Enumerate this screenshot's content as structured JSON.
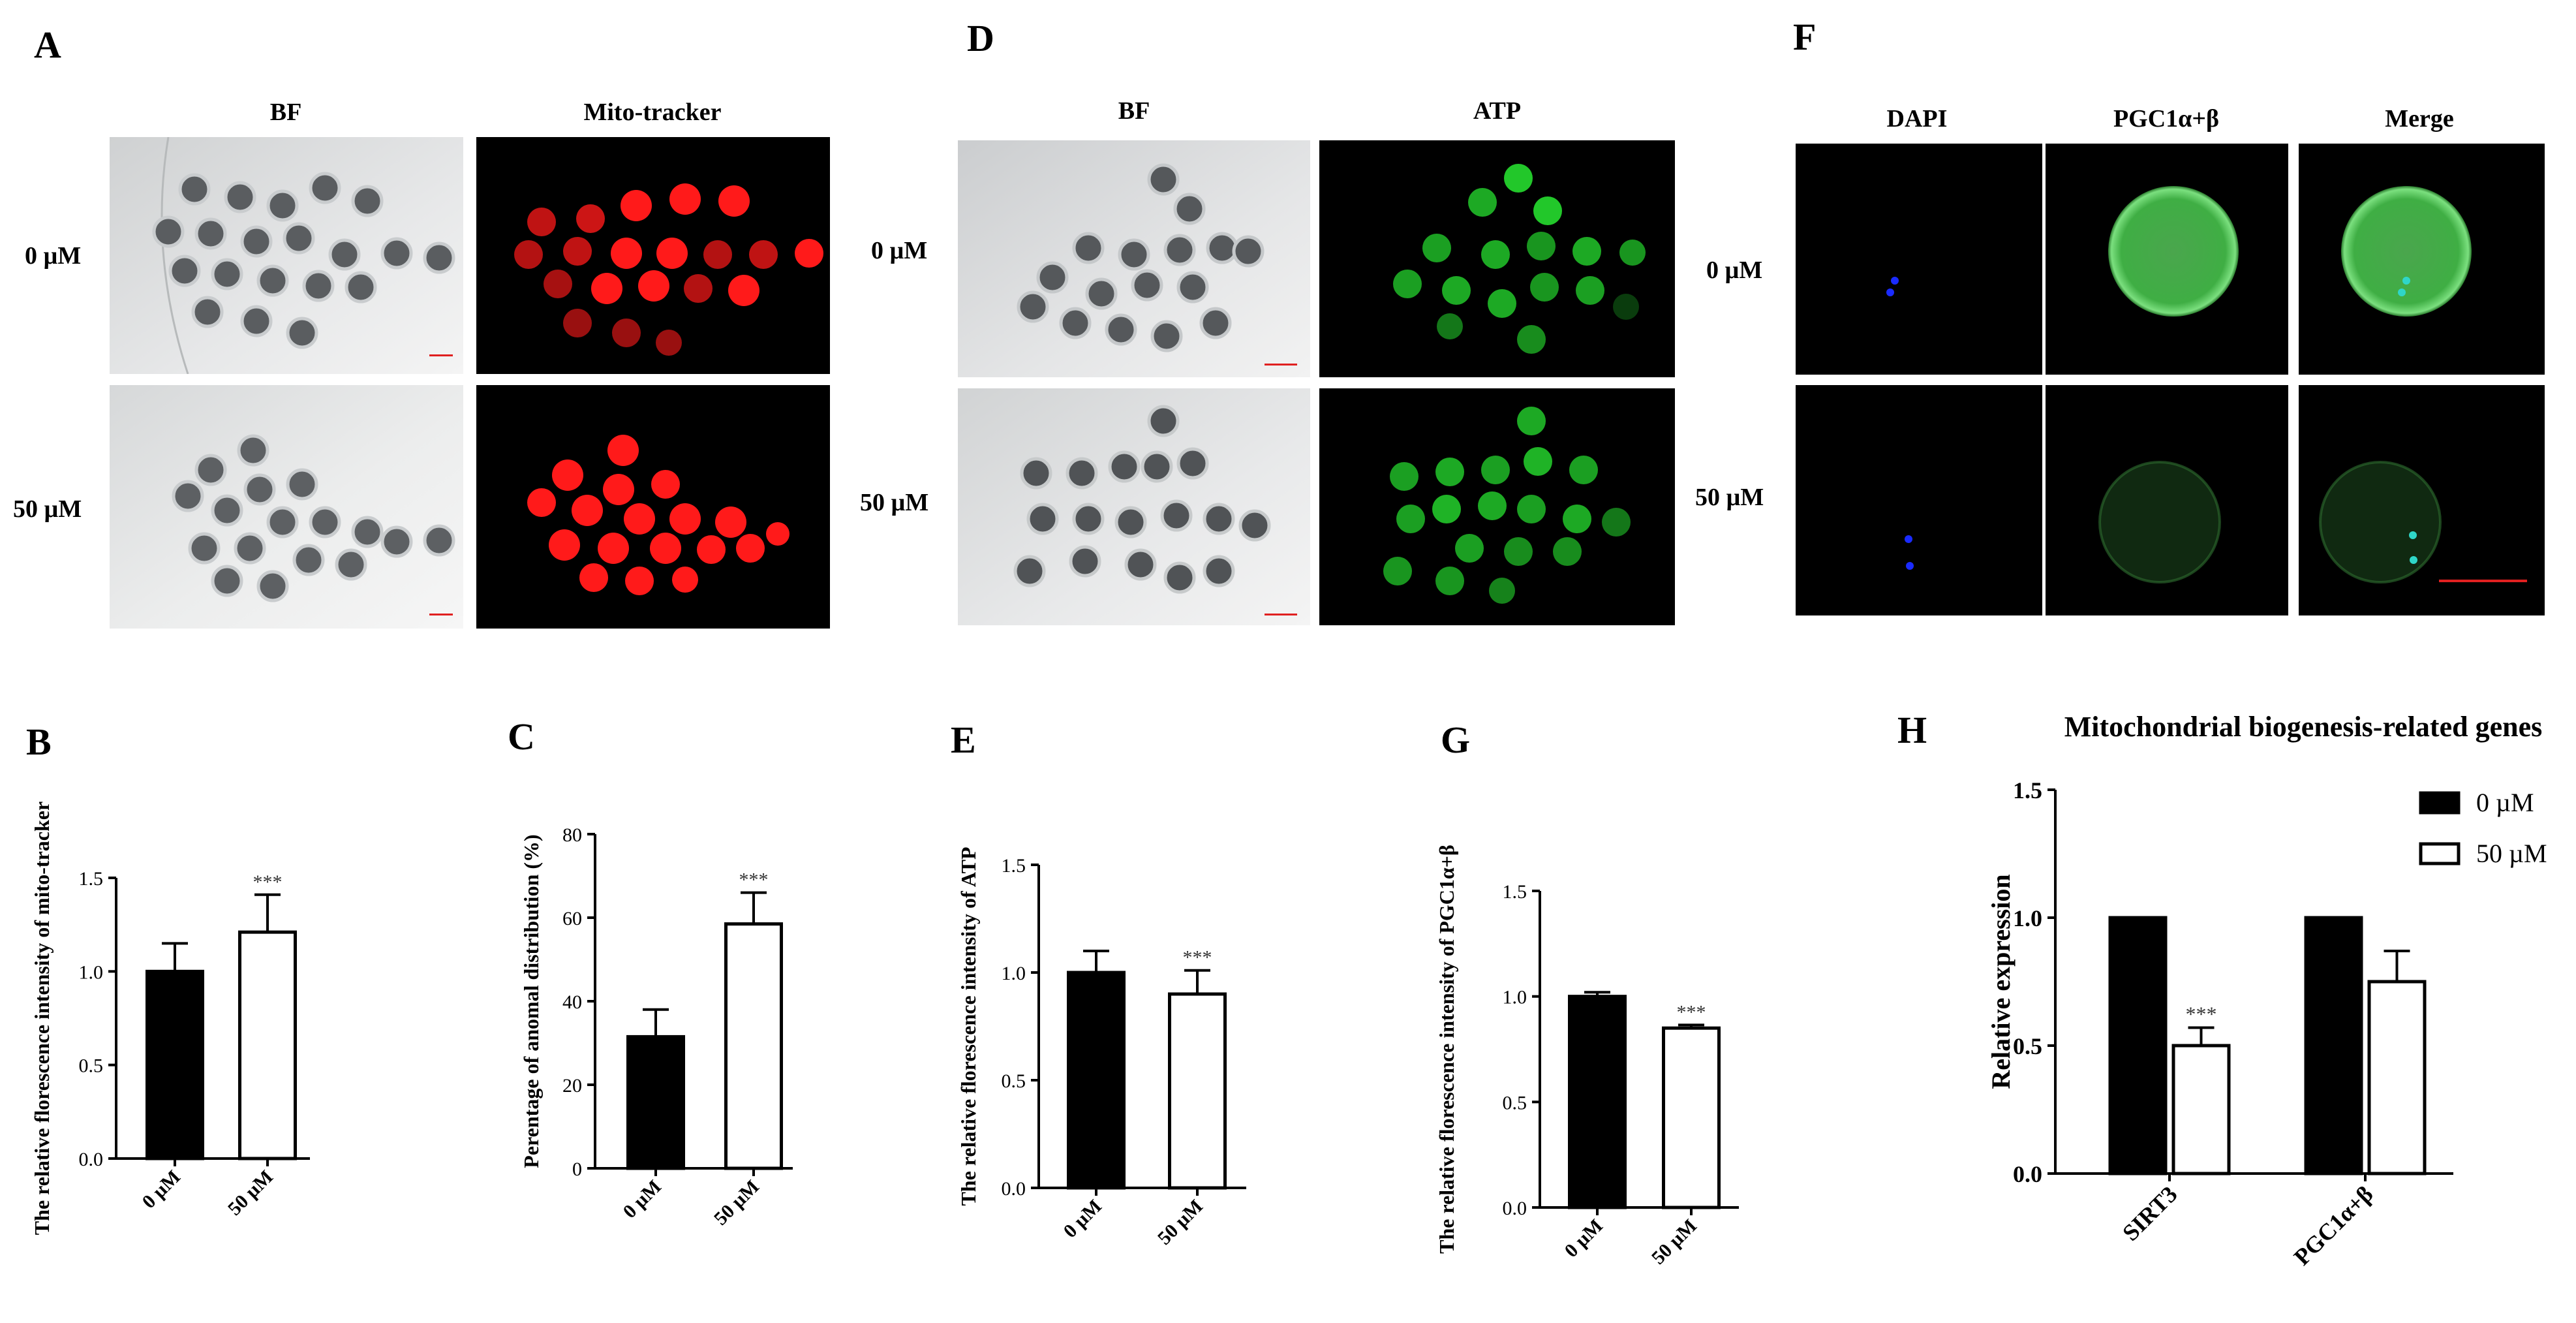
{
  "figure": {
    "panels": {
      "a": "A",
      "b": "B",
      "c": "C",
      "d": "D",
      "e": "E",
      "f": "F",
      "g": "G",
      "h": "H"
    },
    "a": {
      "col1": "BF",
      "col2": "Mito-tracker",
      "row1": "0 µM",
      "row2": "50 µM"
    },
    "d": {
      "col1": "BF",
      "col2": "ATP",
      "row1": "0 µM",
      "row2": "50 µM"
    },
    "f": {
      "col1": "DAPI",
      "col2": "PGC1α+β",
      "col3": "Merge",
      "row1": "0 µM",
      "row2": "50 µM"
    },
    "colors": {
      "mito": "#ff1a1a",
      "atp": "#22c72a",
      "dapi": "#1a2bff",
      "scalebar": "#e02020"
    }
  },
  "chart_data": [
    {
      "id": "B",
      "type": "bar",
      "categories": [
        "0 µM",
        "50 µM"
      ],
      "values": [
        1.0,
        1.21
      ],
      "errors": [
        0.15,
        0.2
      ],
      "significance": [
        "",
        "***"
      ],
      "ylabel": "The relative florescence intensity of mito-tracker",
      "ylim": [
        0,
        1.5
      ],
      "yticks": [
        "0.0",
        "0.5",
        "1.0",
        "1.5"
      ]
    },
    {
      "id": "C",
      "type": "bar",
      "categories": [
        "0 µM",
        "50 µM"
      ],
      "values": [
        31.5,
        58.5
      ],
      "errors": [
        6.5,
        7.5
      ],
      "significance": [
        "",
        "***"
      ],
      "ylabel": "Perentage of anomal distribution (%)",
      "ylim": [
        0,
        80
      ],
      "yticks": [
        "0",
        "20",
        "40",
        "60",
        "80"
      ]
    },
    {
      "id": "E",
      "type": "bar",
      "categories": [
        "0 µM",
        "50 µM"
      ],
      "values": [
        1.0,
        0.9
      ],
      "errors": [
        0.1,
        0.11
      ],
      "significance": [
        "",
        "***"
      ],
      "ylabel": "The relative florescence intensity of ATP",
      "ylim": [
        0,
        1.5
      ],
      "yticks": [
        "0.0",
        "0.5",
        "1.0",
        "1.5"
      ]
    },
    {
      "id": "G",
      "type": "bar",
      "categories": [
        "0 µM",
        "50 µM"
      ],
      "values": [
        1.0,
        0.85
      ],
      "errors": [
        0.02,
        0.015
      ],
      "significance": [
        "",
        "***"
      ],
      "ylabel": "The relative florescence intensity of PGC1α+β",
      "ylim": [
        0,
        1.5
      ],
      "yticks": [
        "0.0",
        "0.5",
        "1.0",
        "1.5"
      ]
    },
    {
      "id": "H",
      "type": "bar",
      "title": "Mitochondrial biogenesis-related genes",
      "categories": [
        "SIRT3",
        "PGC1α+β"
      ],
      "series": [
        {
          "name": "0 µM",
          "values": [
            1.0,
            1.0
          ],
          "errors": [
            0,
            0
          ]
        },
        {
          "name": "50 µM",
          "values": [
            0.5,
            0.75
          ],
          "errors": [
            0.07,
            0.12
          ]
        }
      ],
      "significance": [
        [
          "",
          "***"
        ],
        [
          "",
          ""
        ]
      ],
      "ylabel": "Relative  expression",
      "ylim": [
        0,
        1.5
      ],
      "yticks": [
        "0.0",
        "0.5",
        "1.0",
        "1.5"
      ],
      "legend": "top-right"
    }
  ]
}
